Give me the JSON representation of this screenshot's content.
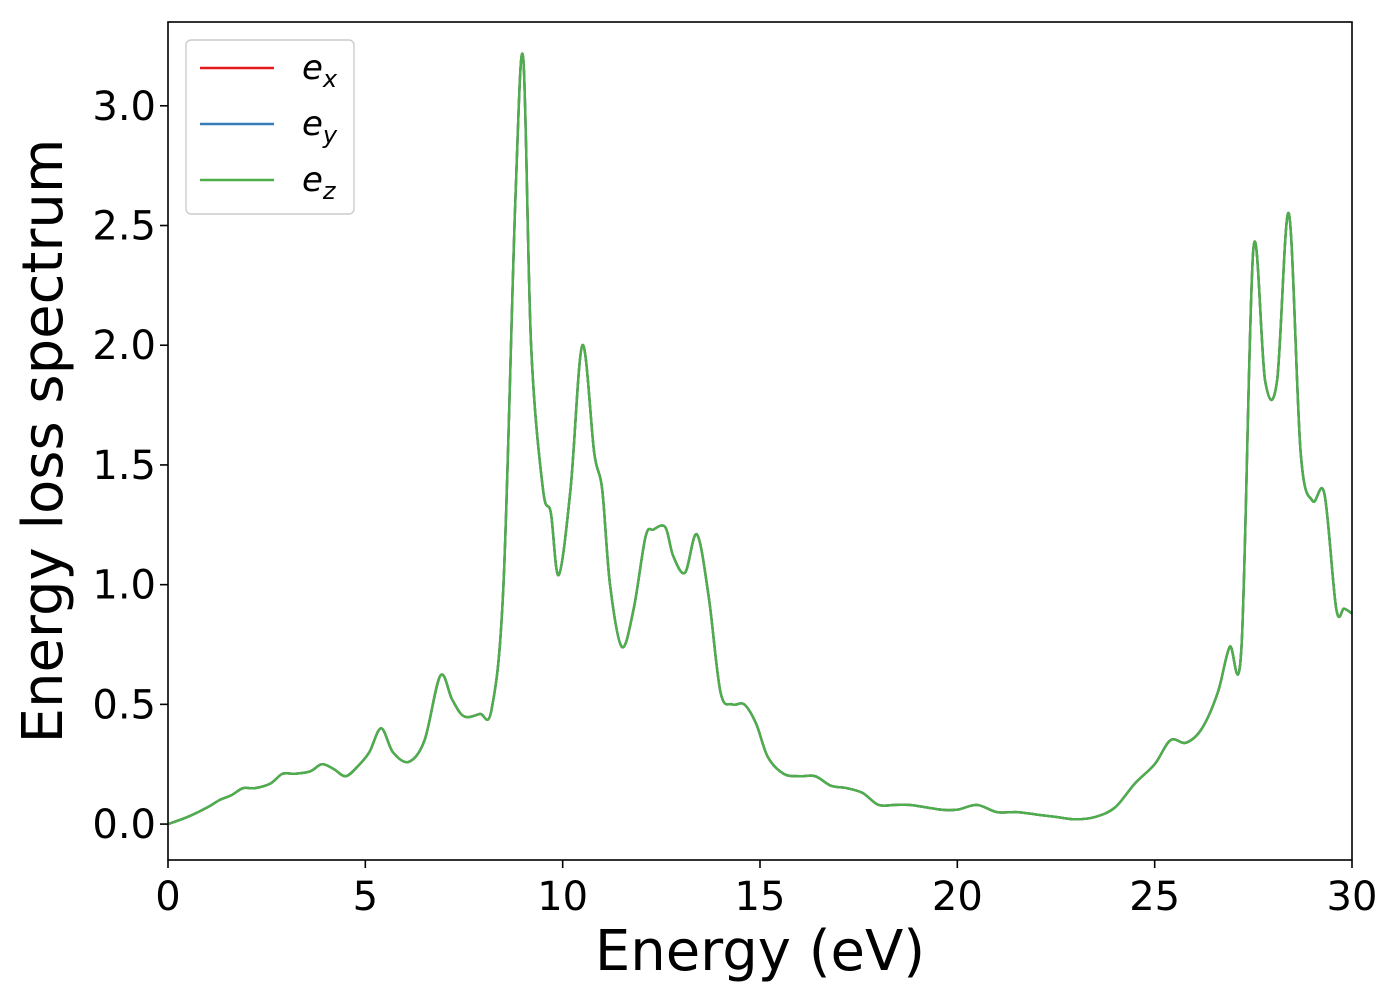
{
  "chart_data": {
    "type": "line",
    "title": "",
    "xlabel": "Energy (eV)",
    "ylabel": "Energy loss spectrum",
    "xlim": [
      0,
      30
    ],
    "ylim": [
      -0.15,
      3.35
    ],
    "grid": false,
    "legend_position": "top-left",
    "x_ticks": [
      0,
      5,
      10,
      15,
      20,
      25,
      30
    ],
    "x_tick_labels": [
      "0",
      "5",
      "10",
      "15",
      "20",
      "25",
      "30"
    ],
    "y_ticks": [
      0.0,
      0.5,
      1.0,
      1.5,
      2.0,
      2.5,
      3.0
    ],
    "y_tick_labels": [
      "0.0",
      "0.5",
      "1.0",
      "1.5",
      "2.0",
      "2.5",
      "3.0"
    ],
    "x": [
      0.0,
      0.5,
      1.0,
      1.3,
      1.6,
      1.9,
      2.2,
      2.6,
      2.9,
      3.2,
      3.6,
      3.9,
      4.2,
      4.5,
      4.8,
      5.1,
      5.4,
      5.7,
      6.1,
      6.5,
      6.9,
      7.2,
      7.5,
      7.9,
      8.2,
      8.5,
      8.8,
      9.0,
      9.2,
      9.5,
      9.7,
      9.9,
      10.2,
      10.5,
      10.8,
      11.0,
      11.2,
      11.5,
      11.8,
      12.1,
      12.3,
      12.6,
      12.8,
      13.1,
      13.4,
      13.7,
      14.0,
      14.3,
      14.6,
      14.9,
      15.2,
      15.6,
      16.0,
      16.4,
      16.8,
      17.2,
      17.6,
      18.0,
      18.4,
      18.8,
      19.2,
      19.6,
      20.0,
      20.5,
      21.0,
      21.5,
      22.0,
      22.5,
      23.0,
      23.5,
      24.0,
      24.5,
      25.0,
      25.4,
      25.8,
      26.2,
      26.6,
      26.9,
      27.2,
      27.5,
      27.8,
      28.1,
      28.4,
      28.7,
      29.0,
      29.3,
      29.6,
      29.8,
      30.0
    ],
    "series": [
      {
        "name": "e_x",
        "color": "#e41a1c",
        "values": [
          0.0,
          0.03,
          0.07,
          0.1,
          0.12,
          0.15,
          0.15,
          0.17,
          0.21,
          0.21,
          0.22,
          0.25,
          0.23,
          0.2,
          0.24,
          0.3,
          0.4,
          0.3,
          0.26,
          0.35,
          0.62,
          0.52,
          0.45,
          0.46,
          0.48,
          1.0,
          2.6,
          3.2,
          2.0,
          1.4,
          1.3,
          1.04,
          1.4,
          2.0,
          1.55,
          1.4,
          1.0,
          0.74,
          0.9,
          1.2,
          1.23,
          1.24,
          1.12,
          1.05,
          1.21,
          0.95,
          0.55,
          0.5,
          0.5,
          0.42,
          0.28,
          0.21,
          0.2,
          0.2,
          0.16,
          0.15,
          0.13,
          0.08,
          0.08,
          0.08,
          0.07,
          0.06,
          0.06,
          0.08,
          0.05,
          0.05,
          0.04,
          0.03,
          0.02,
          0.03,
          0.07,
          0.17,
          0.25,
          0.35,
          0.34,
          0.4,
          0.55,
          0.74,
          0.74,
          2.4,
          1.85,
          1.85,
          2.55,
          1.55,
          1.35,
          1.38,
          0.9,
          0.9,
          0.88
        ]
      },
      {
        "name": "e_y",
        "color": "#377eb8",
        "values": [
          0.0,
          0.03,
          0.07,
          0.1,
          0.12,
          0.15,
          0.15,
          0.17,
          0.21,
          0.21,
          0.22,
          0.25,
          0.23,
          0.2,
          0.24,
          0.3,
          0.4,
          0.3,
          0.26,
          0.35,
          0.62,
          0.52,
          0.45,
          0.46,
          0.48,
          1.0,
          2.6,
          3.2,
          2.0,
          1.4,
          1.3,
          1.04,
          1.4,
          2.0,
          1.55,
          1.4,
          1.0,
          0.74,
          0.9,
          1.2,
          1.23,
          1.24,
          1.12,
          1.05,
          1.21,
          0.95,
          0.55,
          0.5,
          0.5,
          0.42,
          0.28,
          0.21,
          0.2,
          0.2,
          0.16,
          0.15,
          0.13,
          0.08,
          0.08,
          0.08,
          0.07,
          0.06,
          0.06,
          0.08,
          0.05,
          0.05,
          0.04,
          0.03,
          0.02,
          0.03,
          0.07,
          0.17,
          0.25,
          0.35,
          0.34,
          0.4,
          0.55,
          0.74,
          0.74,
          2.4,
          1.85,
          1.85,
          2.55,
          1.55,
          1.35,
          1.38,
          0.9,
          0.9,
          0.88
        ]
      },
      {
        "name": "e_z",
        "color": "#4daf4a",
        "values": [
          0.0,
          0.03,
          0.07,
          0.1,
          0.12,
          0.15,
          0.15,
          0.17,
          0.21,
          0.21,
          0.22,
          0.25,
          0.23,
          0.2,
          0.24,
          0.3,
          0.4,
          0.3,
          0.26,
          0.35,
          0.62,
          0.52,
          0.45,
          0.46,
          0.48,
          1.0,
          2.6,
          3.2,
          2.0,
          1.4,
          1.3,
          1.04,
          1.4,
          2.0,
          1.55,
          1.4,
          1.0,
          0.74,
          0.9,
          1.2,
          1.23,
          1.24,
          1.12,
          1.05,
          1.21,
          0.95,
          0.55,
          0.5,
          0.5,
          0.42,
          0.28,
          0.21,
          0.2,
          0.2,
          0.16,
          0.15,
          0.13,
          0.08,
          0.08,
          0.08,
          0.07,
          0.06,
          0.06,
          0.08,
          0.05,
          0.05,
          0.04,
          0.03,
          0.02,
          0.03,
          0.07,
          0.17,
          0.25,
          0.35,
          0.34,
          0.4,
          0.55,
          0.74,
          0.74,
          2.4,
          1.85,
          1.85,
          2.55,
          1.55,
          1.35,
          1.38,
          0.9,
          0.9,
          0.88
        ]
      }
    ],
    "legend": [
      {
        "base": "e",
        "sub": "x",
        "color": "#e41a1c"
      },
      {
        "base": "e",
        "sub": "y",
        "color": "#377eb8"
      },
      {
        "base": "e",
        "sub": "z",
        "color": "#4daf4a"
      }
    ]
  }
}
